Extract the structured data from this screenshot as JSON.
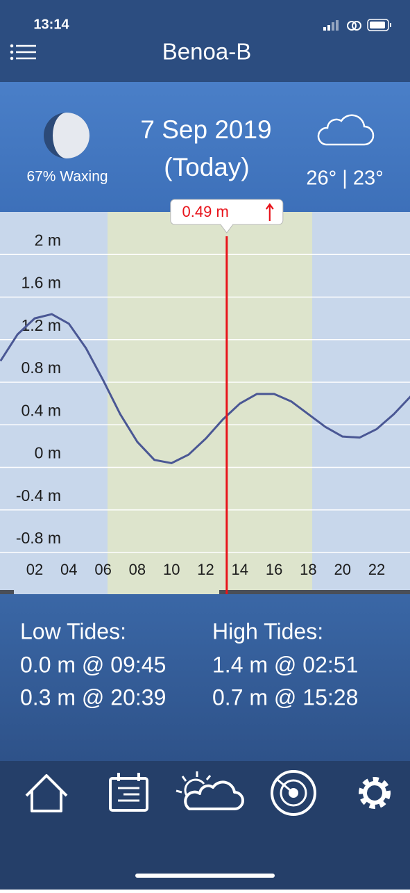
{
  "status_bar": {
    "time": "13:14"
  },
  "header": {
    "title": "Benoa-B"
  },
  "info": {
    "moon": "67% Waxing",
    "date": "7 Sep 2019",
    "day": "(Today)",
    "temperature": "26° | 23°"
  },
  "chart_data": {
    "type": "line",
    "x": [
      0,
      1,
      2,
      3,
      4,
      5,
      6,
      7,
      8,
      9,
      10,
      11,
      12,
      13,
      14,
      15,
      16,
      17,
      18,
      19,
      20,
      21,
      22,
      23,
      24
    ],
    "values": [
      1.0,
      1.25,
      1.4,
      1.44,
      1.35,
      1.12,
      0.82,
      0.5,
      0.24,
      0.07,
      0.04,
      0.12,
      0.27,
      0.45,
      0.6,
      0.69,
      0.69,
      0.62,
      0.5,
      0.38,
      0.29,
      0.28,
      0.36,
      0.5,
      0.67
    ],
    "color": "#4a5794",
    "xlim": [
      0,
      24
    ],
    "ylim": [
      -1.1,
      2.4
    ],
    "xticks": [
      {
        "value": 2,
        "label": "02"
      },
      {
        "value": 4,
        "label": "04"
      },
      {
        "value": 6,
        "label": "06"
      },
      {
        "value": 8,
        "label": "08"
      },
      {
        "value": 10,
        "label": "10"
      },
      {
        "value": 12,
        "label": "12"
      },
      {
        "value": 14,
        "label": "14"
      },
      {
        "value": 16,
        "label": "16"
      },
      {
        "value": 18,
        "label": "18"
      },
      {
        "value": 20,
        "label": "20"
      },
      {
        "value": 22,
        "label": "22"
      }
    ],
    "yticks": [
      {
        "value": 2,
        "label": "2 m"
      },
      {
        "value": 1.6,
        "label": "1.6 m"
      },
      {
        "value": 1.2,
        "label": "1.2 m"
      },
      {
        "value": 0.8,
        "label": "0.8 m"
      },
      {
        "value": 0.4,
        "label": "0.4 m"
      },
      {
        "value": 0,
        "label": "0 m"
      },
      {
        "value": -0.4,
        "label": "-0.4 m"
      },
      {
        "value": -0.8,
        "label": "-0.8 m"
      }
    ],
    "grid": true,
    "daylight": [
      6.26,
      18.23
    ],
    "marker": {
      "x": 13.23,
      "value": 0.49,
      "label": "0.49 m",
      "color": "#e8121a"
    }
  },
  "tides": {
    "low_title": "Low Tides:",
    "low": [
      "0.0 m @ 09:45",
      "0.3 m @ 20:39"
    ],
    "high_title": "High Tides:",
    "high": [
      "1.4 m @ 02:51",
      "0.7 m @ 15:28"
    ]
  }
}
